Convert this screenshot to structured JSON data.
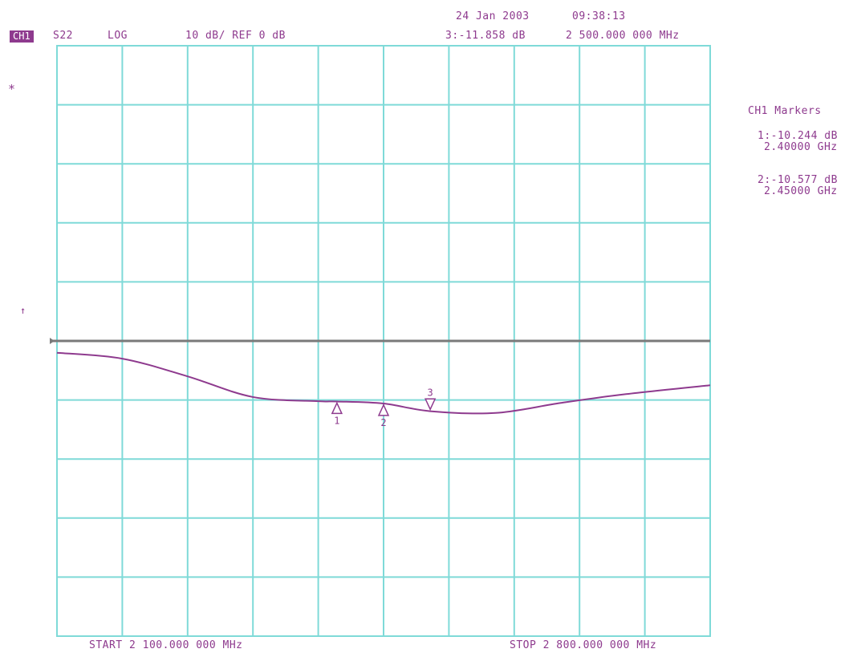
{
  "timestamp": {
    "date": "24 Jan 2003",
    "time": "09:38:13"
  },
  "header": {
    "channel": "CH1",
    "parameter": "S22",
    "format": "LOG",
    "scale": "10 dB/ REF 0 dB",
    "active_marker_readout": "3:-11.858 dB",
    "active_marker_freq": "2 500.000 000 MHz"
  },
  "markers_panel": {
    "title": "CH1 Markers",
    "m1_value": "1:-10.244 dB",
    "m1_freq": "2.40000 GHz",
    "m2_value": "2:-10.577 dB",
    "m2_freq": "2.45000 GHz"
  },
  "footer": {
    "start": "START 2 100.000 000 MHz",
    "stop": "STOP 2 800.000 000 MHz"
  },
  "side_marks": {
    "star": "*",
    "ref_arrow": "↑"
  },
  "colors": {
    "grid": "#7fdad8",
    "trace": "#8e3a8e",
    "reference_line": "#7a7a7a",
    "text": "#8e3a8e",
    "background": "#ffffff"
  },
  "chart_data": {
    "type": "line",
    "title": "",
    "xlabel": "",
    "ylabel": "",
    "x_unit": "MHz",
    "y_unit": "dB",
    "xlim": [
      2100,
      2800
    ],
    "ylim": [
      -50,
      50
    ],
    "divisions": {
      "x": 10,
      "y": 10
    },
    "grid": true,
    "reference_level": 0,
    "series": [
      {
        "x": [
          2100,
          2170,
          2240,
          2310,
          2380,
          2400,
          2450,
          2500,
          2570,
          2640,
          2710,
          2800
        ],
        "y": [
          -2,
          -3,
          -6,
          -9.5,
          -10.2,
          -10.25,
          -10.6,
          -11.9,
          -12.2,
          -10.5,
          -9,
          -7.5
        ]
      }
    ],
    "markers": [
      {
        "label": "1",
        "x": 2400,
        "y": -10.244,
        "direction": "up"
      },
      {
        "label": "2",
        "x": 2450,
        "y": -10.577,
        "direction": "up"
      },
      {
        "label": "3",
        "x": 2500,
        "y": -11.858,
        "direction": "down"
      }
    ]
  }
}
